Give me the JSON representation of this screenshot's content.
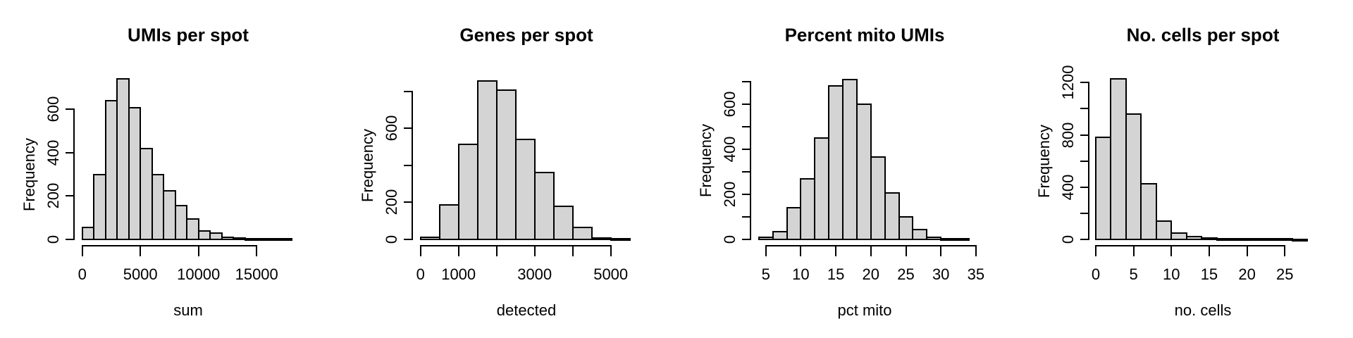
{
  "figure": {
    "background": "#ffffff",
    "bar_fill": "#d4d4d4",
    "bar_stroke": "#000000",
    "text_color": "#000000"
  },
  "chart_data": [
    {
      "type": "bar",
      "subtype": "histogram",
      "title": "UMIs per spot",
      "xlabel": "sum",
      "ylabel": "Frequency",
      "bin_start": 0,
      "bin_width": 1000,
      "counts": [
        55,
        300,
        640,
        740,
        605,
        420,
        300,
        225,
        155,
        95,
        40,
        28,
        10,
        6,
        4,
        3,
        2,
        3
      ],
      "xlim": [
        0,
        18000
      ],
      "ylim": [
        0,
        740
      ],
      "grid": false,
      "x_ticks": [
        {
          "v": 0,
          "t": "0"
        },
        {
          "v": 5000,
          "t": "5000"
        },
        {
          "v": 10000,
          "t": "10000"
        },
        {
          "v": 15000,
          "t": "15000"
        }
      ],
      "y_ticks": [
        {
          "v": 0,
          "t": "0"
        },
        {
          "v": 200,
          "t": "200"
        },
        {
          "v": 400,
          "t": "400"
        },
        {
          "v": 600,
          "t": "600"
        }
      ]
    },
    {
      "type": "bar",
      "subtype": "histogram",
      "title": "Genes per spot",
      "xlabel": "detected",
      "ylabel": "Frequency",
      "bin_start": 0,
      "bin_width": 500,
      "counts": [
        10,
        185,
        512,
        855,
        805,
        540,
        363,
        178,
        66,
        9,
        5
      ],
      "xlim": [
        0,
        5500
      ],
      "ylim": [
        0,
        855
      ],
      "grid": false,
      "x_ticks": [
        {
          "v": 0,
          "t": "0"
        },
        {
          "v": 1000,
          "t": "1000"
        },
        {
          "v": 2000,
          "t": ""
        },
        {
          "v": 3000,
          "t": "3000"
        },
        {
          "v": 4000,
          "t": ""
        },
        {
          "v": 5000,
          "t": "5000"
        }
      ],
      "y_ticks": [
        {
          "v": 0,
          "t": "0"
        },
        {
          "v": 200,
          "t": "200"
        },
        {
          "v": 400,
          "t": ""
        },
        {
          "v": 600,
          "t": "600"
        },
        {
          "v": 800,
          "t": ""
        }
      ]
    },
    {
      "type": "bar",
      "subtype": "histogram",
      "title": "Percent mito UMIs",
      "xlabel": "pct mito",
      "ylabel": "Frequency",
      "bin_start": 4,
      "bin_width": 2,
      "counts": [
        8,
        35,
        140,
        270,
        450,
        680,
        710,
        600,
        365,
        205,
        100,
        45,
        10,
        4,
        2
      ],
      "xlim": [
        4,
        34
      ],
      "ylim": [
        0,
        710
      ],
      "grid": false,
      "x_ticks": [
        {
          "v": 5,
          "t": "5"
        },
        {
          "v": 10,
          "t": "10"
        },
        {
          "v": 15,
          "t": "15"
        },
        {
          "v": 20,
          "t": "20"
        },
        {
          "v": 25,
          "t": "25"
        },
        {
          "v": 30,
          "t": "30"
        },
        {
          "v": 35,
          "t": "35"
        }
      ],
      "y_ticks": [
        {
          "v": 0,
          "t": "0"
        },
        {
          "v": 100,
          "t": ""
        },
        {
          "v": 200,
          "t": "200"
        },
        {
          "v": 300,
          "t": ""
        },
        {
          "v": 400,
          "t": "400"
        },
        {
          "v": 500,
          "t": ""
        },
        {
          "v": 600,
          "t": "600"
        },
        {
          "v": 700,
          "t": ""
        }
      ]
    },
    {
      "type": "bar",
      "subtype": "histogram",
      "title": "No. cells per spot",
      "xlabel": "no. cells",
      "ylabel": "Frequency",
      "bin_start": 0,
      "bin_width": 2,
      "counts": [
        780,
        1230,
        960,
        425,
        140,
        50,
        20,
        12,
        6,
        8,
        4,
        3,
        5,
        2
      ],
      "xlim": [
        0,
        28
      ],
      "ylim": [
        0,
        1230
      ],
      "grid": false,
      "x_ticks": [
        {
          "v": 0,
          "t": "0"
        },
        {
          "v": 5,
          "t": "5"
        },
        {
          "v": 10,
          "t": "10"
        },
        {
          "v": 15,
          "t": "15"
        },
        {
          "v": 20,
          "t": "20"
        },
        {
          "v": 25,
          "t": "25"
        }
      ],
      "y_ticks": [
        {
          "v": 0,
          "t": "0"
        },
        {
          "v": 200,
          "t": ""
        },
        {
          "v": 400,
          "t": "400"
        },
        {
          "v": 600,
          "t": ""
        },
        {
          "v": 800,
          "t": "800"
        },
        {
          "v": 1000,
          "t": ""
        },
        {
          "v": 1200,
          "t": "1200"
        }
      ]
    }
  ]
}
